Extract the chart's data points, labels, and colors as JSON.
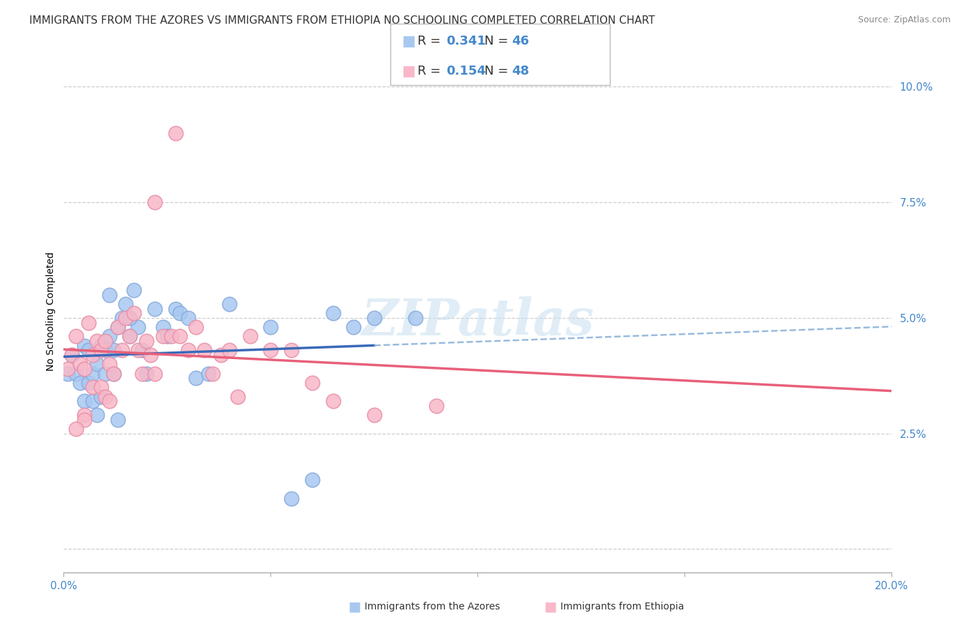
{
  "title": "IMMIGRANTS FROM THE AZORES VS IMMIGRANTS FROM ETHIOPIA NO SCHOOLING COMPLETED CORRELATION CHART",
  "source": "Source: ZipAtlas.com",
  "ylabel": "No Schooling Completed",
  "xlim": [
    0.0,
    0.2
  ],
  "ylim": [
    -0.005,
    0.108
  ],
  "ytick_positions": [
    0.0,
    0.025,
    0.05,
    0.075,
    0.1
  ],
  "ytick_labels": [
    "",
    "2.5%",
    "5.0%",
    "7.5%",
    "10.0%"
  ],
  "xtick_positions": [
    0.0,
    0.05,
    0.1,
    0.15,
    0.2
  ],
  "xtick_labels": [
    "0.0%",
    "",
    "",
    "",
    "20.0%"
  ],
  "grid_color": "#c8c8c8",
  "background_color": "#ffffff",
  "series1_color_fill": "#a8c8f0",
  "series1_color_edge": "#88aadd",
  "series2_color_fill": "#f8b8c8",
  "series2_color_edge": "#e890a8",
  "line1_color": "#3a6ab8",
  "line2_color": "#e8607a",
  "dashed_line_color": "#99bbdd",
  "tick_color": "#4488cc",
  "title_fontsize": 11,
  "source_fontsize": 9,
  "axis_label_fontsize": 10,
  "tick_fontsize": 11,
  "legend_fontsize": 13,
  "watermark_text": "ZIPatlas",
  "legend_label1": "Immigrants from the Azores",
  "legend_label2": "Immigrants from Ethiopia",
  "azores_x": [
    0.001,
    0.002,
    0.003,
    0.004,
    0.005,
    0.005,
    0.006,
    0.006,
    0.007,
    0.007,
    0.008,
    0.008,
    0.009,
    0.009,
    0.01,
    0.01,
    0.011,
    0.011,
    0.012,
    0.012,
    0.013,
    0.014,
    0.015,
    0.016,
    0.017,
    0.018,
    0.019,
    0.02,
    0.022,
    0.024,
    0.025,
    0.027,
    0.028,
    0.03,
    0.032,
    0.035,
    0.04,
    0.05,
    0.055,
    0.06,
    0.065,
    0.07,
    0.075,
    0.085,
    0.016,
    0.013
  ],
  "azores_y": [
    0.038,
    0.042,
    0.038,
    0.036,
    0.044,
    0.032,
    0.043,
    0.036,
    0.038,
    0.032,
    0.04,
    0.029,
    0.044,
    0.033,
    0.043,
    0.038,
    0.055,
    0.046,
    0.043,
    0.038,
    0.048,
    0.05,
    0.053,
    0.046,
    0.056,
    0.048,
    0.043,
    0.038,
    0.052,
    0.048,
    0.046,
    0.052,
    0.051,
    0.05,
    0.037,
    0.038,
    0.053,
    0.048,
    0.011,
    0.015,
    0.051,
    0.048,
    0.05,
    0.05,
    0.05,
    0.028
  ],
  "ethiopia_x": [
    0.001,
    0.002,
    0.003,
    0.004,
    0.005,
    0.005,
    0.006,
    0.007,
    0.007,
    0.008,
    0.009,
    0.009,
    0.01,
    0.01,
    0.011,
    0.011,
    0.012,
    0.013,
    0.014,
    0.015,
    0.016,
    0.017,
    0.018,
    0.019,
    0.02,
    0.021,
    0.022,
    0.024,
    0.026,
    0.028,
    0.03,
    0.032,
    0.034,
    0.036,
    0.038,
    0.04,
    0.042,
    0.045,
    0.05,
    0.055,
    0.06,
    0.065,
    0.075,
    0.09,
    0.027,
    0.022,
    0.005,
    0.003
  ],
  "ethiopia_y": [
    0.039,
    0.042,
    0.046,
    0.04,
    0.039,
    0.029,
    0.049,
    0.042,
    0.035,
    0.045,
    0.043,
    0.035,
    0.045,
    0.033,
    0.04,
    0.032,
    0.038,
    0.048,
    0.043,
    0.05,
    0.046,
    0.051,
    0.043,
    0.038,
    0.045,
    0.042,
    0.038,
    0.046,
    0.046,
    0.046,
    0.043,
    0.048,
    0.043,
    0.038,
    0.042,
    0.043,
    0.033,
    0.046,
    0.043,
    0.043,
    0.036,
    0.032,
    0.029,
    0.031,
    0.09,
    0.075,
    0.028,
    0.026
  ],
  "blue_line_x_end": 0.075,
  "dashed_line_x_start": 0.075,
  "dashed_line_x_end": 0.2
}
